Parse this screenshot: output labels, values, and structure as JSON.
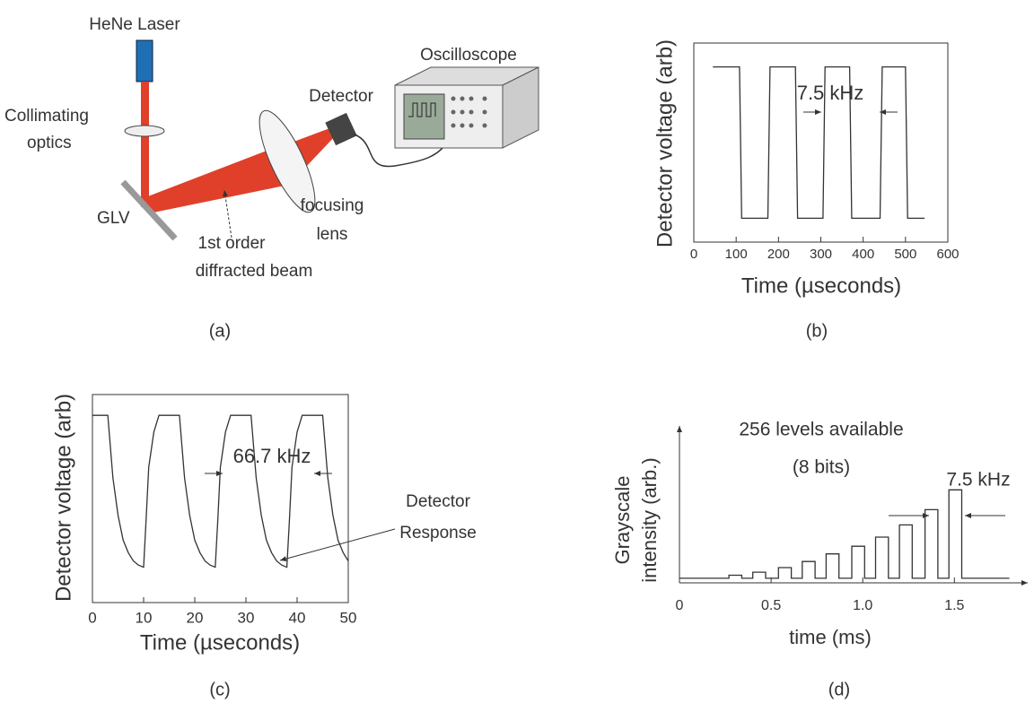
{
  "diagram": {
    "labels": {
      "laser": "HeNe Laser",
      "collimating_1": "Collimating",
      "collimating_2": "optics",
      "glv": "GLV",
      "beam_1": "1st order",
      "beam_2": "diffracted beam",
      "lens_1": "focusing",
      "lens_2": "lens",
      "detector": "Detector",
      "scope": "Oscilloscope"
    },
    "caption": "(a)"
  },
  "chart_data": [
    {
      "type": "line",
      "caption": "(b)",
      "xlabel": "Time (µseconds)",
      "ylabel": "Detector voltage (arb)",
      "annotations": [
        "7.5 kHz"
      ],
      "x": [
        45,
        108,
        113,
        175,
        180,
        240,
        245,
        305,
        310,
        368,
        373,
        440,
        445,
        500,
        505,
        545
      ],
      "series": [
        {
          "color": "#333333",
          "values": [
            0.88,
            0.88,
            0.12,
            0.12,
            0.88,
            0.88,
            0.12,
            0.12,
            0.88,
            0.88,
            0.12,
            0.12,
            0.88,
            0.88,
            0.12,
            0.12
          ]
        }
      ],
      "xlim": [
        0,
        600
      ],
      "ylim": [
        0,
        1
      ],
      "xticks": [
        0,
        100,
        200,
        300,
        400,
        500,
        600
      ]
    },
    {
      "type": "line",
      "caption": "(c)",
      "xlabel": "Time (µseconds)",
      "ylabel": "Detector voltage (arb)",
      "annotations": [
        "66.7 kHz",
        "Detector",
        "Response"
      ],
      "x": [
        0,
        3,
        4,
        5,
        6,
        7,
        8,
        9,
        10,
        10.5,
        11,
        12,
        13,
        17,
        18,
        19,
        20,
        21,
        22,
        23,
        24,
        24.5,
        25,
        26,
        27,
        31,
        32,
        33,
        34,
        35,
        36,
        37,
        38,
        38.5,
        39,
        40,
        41,
        45,
        46,
        47,
        48,
        49,
        50
      ],
      "series": [
        {
          "color": "#333333",
          "values": [
            0.9,
            0.9,
            0.6,
            0.42,
            0.3,
            0.24,
            0.2,
            0.18,
            0.17,
            0.4,
            0.65,
            0.82,
            0.9,
            0.9,
            0.6,
            0.42,
            0.3,
            0.24,
            0.2,
            0.18,
            0.17,
            0.4,
            0.65,
            0.82,
            0.9,
            0.9,
            0.6,
            0.42,
            0.3,
            0.24,
            0.2,
            0.18,
            0.17,
            0.4,
            0.65,
            0.82,
            0.9,
            0.9,
            0.6,
            0.42,
            0.3,
            0.24,
            0.2
          ]
        }
      ],
      "xlim": [
        0,
        50
      ],
      "ylim": [
        0,
        1
      ],
      "xticks": [
        0,
        10,
        20,
        30,
        40,
        50
      ]
    },
    {
      "type": "line",
      "caption": "(d)",
      "xlabel": "time (ms)",
      "ylabel": [
        "Grayscale",
        "intensity (arb.)"
      ],
      "annotations": [
        "256 levels available",
        "(8 bits)",
        "7.5 kHz"
      ],
      "x": [
        0,
        0.27,
        0.27,
        0.34,
        0.34,
        0.4,
        0.4,
        0.47,
        0.47,
        0.54,
        0.54,
        0.61,
        0.61,
        0.67,
        0.67,
        0.74,
        0.74,
        0.8,
        0.8,
        0.87,
        0.87,
        0.94,
        0.94,
        1.01,
        1.01,
        1.07,
        1.07,
        1.14,
        1.14,
        1.2,
        1.2,
        1.27,
        1.27,
        1.34,
        1.34,
        1.41,
        1.41,
        1.47,
        1.47,
        1.54,
        1.54,
        1.8
      ],
      "series": [
        {
          "color": "#333333",
          "values": [
            0.03,
            0.03,
            0.05,
            0.05,
            0.03,
            0.03,
            0.07,
            0.07,
            0.03,
            0.03,
            0.1,
            0.1,
            0.03,
            0.03,
            0.14,
            0.14,
            0.03,
            0.03,
            0.19,
            0.19,
            0.03,
            0.03,
            0.24,
            0.24,
            0.03,
            0.03,
            0.3,
            0.3,
            0.03,
            0.03,
            0.38,
            0.38,
            0.03,
            0.03,
            0.48,
            0.48,
            0.03,
            0.03,
            0.61,
            0.61,
            0.03,
            0.03
          ]
        }
      ],
      "xlim": [
        0,
        1.9
      ],
      "ylim": [
        0,
        1
      ],
      "xticks": [
        0,
        0.5,
        {
          "value": 1,
          "label": "1.0"
        },
        1.5
      ]
    }
  ]
}
